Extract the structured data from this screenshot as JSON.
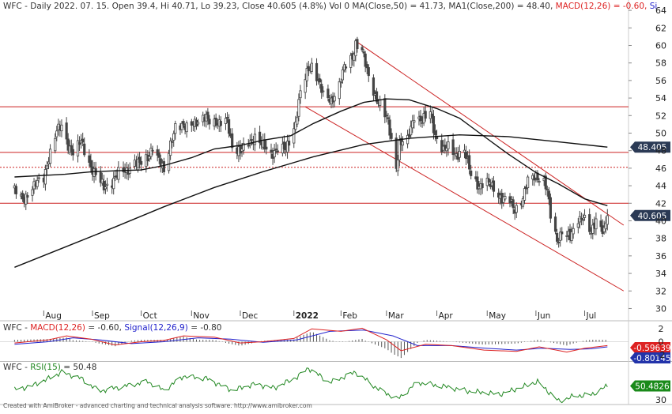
{
  "header": {
    "ticker": "WFC",
    "info": "- Daily 2022. 07. 15. Open 39.4, Hi 40.71, Lo 39.23, Close 40.605 (4.8%) Vol 0",
    "ma50": "MA(Close,50) = 41.73,",
    "ma200": "MA1(Close,200) = 48.40,",
    "macd": "MACD(12,26) = -0.60,",
    "signal": "Si"
  },
  "colors": {
    "candle": "#444444",
    "ma": "#111111",
    "trend": "#cc2222",
    "macd": "#dd2222",
    "signal": "#2222cc",
    "histogram": "#555555",
    "rsi": "#228822",
    "label_dark": "#2b3a55",
    "label_macd": "#dd2222",
    "label_signal": "#2233aa",
    "label_rsi": "#1a8a1a"
  },
  "chart_data": [
    {
      "type": "candlestick",
      "x_axis": {
        "ticks": [
          {
            "label": "Aug",
            "date": "2021-08-02"
          },
          {
            "label": "Sep",
            "date": "2021-09-01"
          },
          {
            "label": "Oct",
            "date": "2021-10-01"
          },
          {
            "label": "Nov",
            "date": "2021-11-01"
          },
          {
            "label": "Dec",
            "date": "2021-12-01"
          },
          {
            "label": "2022",
            "date": "2022-01-03"
          },
          {
            "label": "Feb",
            "date": "2022-02-01"
          },
          {
            "label": "Mar",
            "date": "2022-03-01"
          },
          {
            "label": "Apr",
            "date": "2022-04-01"
          },
          {
            "label": "May",
            "date": "2022-05-02"
          },
          {
            "label": "Jun",
            "date": "2022-06-01"
          },
          {
            "label": "Jul",
            "date": "2022-07-01"
          }
        ]
      },
      "y_axis": {
        "ticks": [
          30,
          32,
          34,
          36,
          38,
          40,
          42,
          44,
          46,
          48,
          50,
          52,
          54,
          56,
          58,
          60,
          62,
          64
        ],
        "ylim": [
          29.5,
          65
        ]
      },
      "close_series": [
        [
          "2021-07-15",
          43.5
        ],
        [
          "2021-07-20",
          42.3
        ],
        [
          "2021-07-26",
          43.9
        ],
        [
          "2021-08-02",
          44.8
        ],
        [
          "2021-08-05",
          47.3
        ],
        [
          "2021-08-10",
          50.2
        ],
        [
          "2021-08-13",
          50.7
        ],
        [
          "2021-08-17",
          48.7
        ],
        [
          "2021-08-20",
          47.8
        ],
        [
          "2021-08-25",
          49.0
        ],
        [
          "2021-08-31",
          46.2
        ],
        [
          "2021-09-03",
          45.2
        ],
        [
          "2021-09-08",
          43.8
        ],
        [
          "2021-09-13",
          44.5
        ],
        [
          "2021-09-17",
          45.4
        ],
        [
          "2021-09-22",
          45.7
        ],
        [
          "2021-09-27",
          46.8
        ],
        [
          "2021-09-30",
          46.4
        ],
        [
          "2021-10-05",
          47.2
        ],
        [
          "2021-10-08",
          48.6
        ],
        [
          "2021-10-13",
          46.4
        ],
        [
          "2021-10-15",
          45.6
        ],
        [
          "2021-10-19",
          48.9
        ],
        [
          "2021-10-22",
          50.7
        ],
        [
          "2021-10-27",
          50.6
        ],
        [
          "2021-11-02",
          51.4
        ],
        [
          "2021-11-05",
          51.0
        ],
        [
          "2021-11-10",
          51.8
        ],
        [
          "2021-11-15",
          51.4
        ],
        [
          "2021-11-18",
          50.9
        ],
        [
          "2021-11-23",
          51.5
        ],
        [
          "2021-11-26",
          48.6
        ],
        [
          "2021-12-01",
          47.8
        ],
        [
          "2021-12-06",
          48.9
        ],
        [
          "2021-12-10",
          49.6
        ],
        [
          "2021-12-15",
          48.5
        ],
        [
          "2021-12-20",
          47.6
        ],
        [
          "2021-12-23",
          48.2
        ],
        [
          "2021-12-29",
          48.1
        ],
        [
          "2022-01-04",
          51.2
        ],
        [
          "2022-01-07",
          54.6
        ],
        [
          "2022-01-12",
          57.3
        ],
        [
          "2022-01-14",
          57.8
        ],
        [
          "2022-01-18",
          56.2
        ],
        [
          "2022-01-21",
          54.2
        ],
        [
          "2022-01-26",
          53.7
        ],
        [
          "2022-01-31",
          55.6
        ],
        [
          "2022-02-03",
          57.4
        ],
        [
          "2022-02-08",
          58.7
        ],
        [
          "2022-02-10",
          60.3
        ],
        [
          "2022-02-14",
          59.4
        ],
        [
          "2022-02-17",
          57.0
        ],
        [
          "2022-02-22",
          54.3
        ],
        [
          "2022-02-25",
          53.3
        ],
        [
          "2022-03-02",
          51.2
        ],
        [
          "2022-03-07",
          46.2
        ],
        [
          "2022-03-09",
          48.8
        ],
        [
          "2022-03-14",
          49.1
        ],
        [
          "2022-03-18",
          52.1
        ],
        [
          "2022-03-23",
          51.4
        ],
        [
          "2022-03-28",
          52.3
        ],
        [
          "2022-03-31",
          49.8
        ],
        [
          "2022-04-05",
          48.0
        ],
        [
          "2022-04-08",
          48.4
        ],
        [
          "2022-04-13",
          47.6
        ],
        [
          "2022-04-18",
          47.9
        ],
        [
          "2022-04-22",
          45.3
        ],
        [
          "2022-04-27",
          44.0
        ],
        [
          "2022-05-02",
          44.3
        ],
        [
          "2022-05-06",
          43.8
        ],
        [
          "2022-05-11",
          42.5
        ],
        [
          "2022-05-16",
          42.2
        ],
        [
          "2022-05-19",
          41.3
        ],
        [
          "2022-05-24",
          42.6
        ],
        [
          "2022-05-27",
          44.5
        ],
        [
          "2022-06-01",
          45.2
        ],
        [
          "2022-06-06",
          44.5
        ],
        [
          "2022-06-08",
          43.3
        ],
        [
          "2022-06-10",
          40.6
        ],
        [
          "2022-06-14",
          37.8
        ],
        [
          "2022-06-17",
          38.8
        ],
        [
          "2022-06-22",
          38.0
        ],
        [
          "2022-06-27",
          40.3
        ],
        [
          "2022-06-30",
          40.5
        ],
        [
          "2022-07-05",
          38.4
        ],
        [
          "2022-07-08",
          40.2
        ],
        [
          "2022-07-13",
          38.9
        ],
        [
          "2022-07-15",
          40.605
        ]
      ],
      "ma50": [
        [
          "2021-07-15",
          45.0
        ],
        [
          "2021-08-15",
          45.3
        ],
        [
          "2021-09-01",
          45.6
        ],
        [
          "2021-09-15",
          45.7
        ],
        [
          "2021-10-01",
          45.8
        ],
        [
          "2021-10-15",
          46.3
        ],
        [
          "2021-11-01",
          47.2
        ],
        [
          "2021-11-15",
          48.2
        ],
        [
          "2021-12-01",
          48.6
        ],
        [
          "2021-12-15",
          49.2
        ],
        [
          "2022-01-01",
          49.7
        ],
        [
          "2022-01-15",
          51.1
        ],
        [
          "2022-02-01",
          52.5
        ],
        [
          "2022-02-15",
          53.5
        ],
        [
          "2022-03-01",
          53.9
        ],
        [
          "2022-03-15",
          53.8
        ],
        [
          "2022-04-01",
          52.8
        ],
        [
          "2022-04-15",
          51.7
        ],
        [
          "2022-05-01",
          49.5
        ],
        [
          "2022-05-15",
          47.6
        ],
        [
          "2022-06-01",
          45.5
        ],
        [
          "2022-06-15",
          44.2
        ],
        [
          "2022-07-01",
          42.5
        ],
        [
          "2022-07-15",
          41.73
        ]
      ],
      "ma200": [
        [
          "2021-07-15",
          34.7
        ],
        [
          "2021-08-15",
          37.0
        ],
        [
          "2021-09-15",
          39.3
        ],
        [
          "2021-10-15",
          41.6
        ],
        [
          "2021-11-15",
          43.8
        ],
        [
          "2021-12-15",
          45.6
        ],
        [
          "2022-01-15",
          47.3
        ],
        [
          "2022-02-15",
          48.7
        ],
        [
          "2022-03-15",
          49.4
        ],
        [
          "2022-04-15",
          49.8
        ],
        [
          "2022-05-15",
          49.6
        ],
        [
          "2022-06-15",
          49.0
        ],
        [
          "2022-07-15",
          48.4
        ]
      ],
      "horizontal_levels": [
        {
          "value": 53.0,
          "style": "solid"
        },
        {
          "value": 47.8,
          "style": "solid"
        },
        {
          "value": 46.1,
          "style": "dotted"
        },
        {
          "value": 42.0,
          "style": "solid"
        }
      ],
      "trend_lines": [
        [
          [
            "2022-02-10",
            60.5
          ],
          [
            "2022-07-25",
            39.5
          ]
        ],
        [
          [
            "2022-01-10",
            53.0
          ],
          [
            "2022-07-25",
            32.0
          ]
        ]
      ],
      "price_labels": {
        "ma200": "48.405",
        "close": "40.605"
      }
    },
    {
      "type": "line",
      "title": "WFC - MACD(12,26) = -0.60, Signal(12,26,9) = -0.80",
      "ticker": "WFC",
      "macd_name": "MACD(12,26)",
      "macd_value": "= -0.60,",
      "signal_name": "Signal(12,26,9)",
      "signal_value": "= -0.80",
      "y_axis": {
        "ticks": [
          2,
          0,
          -2
        ],
        "ylim": [
          -3,
          3
        ]
      },
      "label_macd": "-0.59639",
      "label_signal": "-0.80145",
      "macd": [
        [
          "2021-07-15",
          -0.2
        ],
        [
          "2021-08-05",
          0.3
        ],
        [
          "2021-08-16",
          0.9
        ],
        [
          "2021-08-31",
          0.4
        ],
        [
          "2021-09-15",
          -0.5
        ],
        [
          "2021-10-01",
          0.0
        ],
        [
          "2021-10-15",
          0.2
        ],
        [
          "2021-10-27",
          0.9
        ],
        [
          "2021-11-15",
          0.7
        ],
        [
          "2021-12-01",
          -0.2
        ],
        [
          "2021-12-15",
          0.0
        ],
        [
          "2022-01-03",
          0.5
        ],
        [
          "2022-01-14",
          2.0
        ],
        [
          "2022-02-01",
          1.6
        ],
        [
          "2022-02-14",
          2.1
        ],
        [
          "2022-03-01",
          0.3
        ],
        [
          "2022-03-10",
          -1.4
        ],
        [
          "2022-03-25",
          -0.4
        ],
        [
          "2022-04-10",
          -0.6
        ],
        [
          "2022-04-30",
          -1.3
        ],
        [
          "2022-05-20",
          -1.5
        ],
        [
          "2022-06-03",
          -0.8
        ],
        [
          "2022-06-20",
          -1.6
        ],
        [
          "2022-07-01",
          -1.0
        ],
        [
          "2022-07-15",
          -0.6
        ]
      ],
      "signal": [
        [
          "2021-07-15",
          -0.4
        ],
        [
          "2021-08-05",
          0.0
        ],
        [
          "2021-08-20",
          0.6
        ],
        [
          "2021-09-05",
          0.3
        ],
        [
          "2021-09-25",
          -0.3
        ],
        [
          "2021-10-15",
          0.0
        ],
        [
          "2021-11-05",
          0.6
        ],
        [
          "2021-11-25",
          0.4
        ],
        [
          "2021-12-15",
          -0.1
        ],
        [
          "2022-01-05",
          0.3
        ],
        [
          "2022-01-25",
          1.6
        ],
        [
          "2022-02-15",
          1.8
        ],
        [
          "2022-03-05",
          0.9
        ],
        [
          "2022-03-20",
          -0.6
        ],
        [
          "2022-04-10",
          -0.6
        ],
        [
          "2022-05-01",
          -1.0
        ],
        [
          "2022-05-20",
          -1.3
        ],
        [
          "2022-06-05",
          -1.0
        ],
        [
          "2022-06-22",
          -1.2
        ],
        [
          "2022-07-05",
          -1.1
        ],
        [
          "2022-07-15",
          -0.8
        ]
      ]
    },
    {
      "type": "line",
      "title": "WFC - RSI(15) = 50.48",
      "ticker": "WFC",
      "rsi_name": "RSI(15)",
      "rsi_value": "= 50.48",
      "y_axis": {
        "ticks": [
          30
        ],
        "ylim": [
          28,
          80
        ]
      },
      "label": "50.4826",
      "values": [
        [
          "2021-07-15",
          46
        ],
        [
          "2021-07-25",
          50
        ],
        [
          "2021-08-05",
          60
        ],
        [
          "2021-08-13",
          68
        ],
        [
          "2021-08-25",
          60
        ],
        [
          "2021-09-05",
          44
        ],
        [
          "2021-09-20",
          50
        ],
        [
          "2021-10-05",
          56
        ],
        [
          "2021-10-15",
          45
        ],
        [
          "2021-10-27",
          63
        ],
        [
          "2021-11-10",
          60
        ],
        [
          "2021-11-26",
          45
        ],
        [
          "2021-12-10",
          53
        ],
        [
          "2021-12-22",
          48
        ],
        [
          "2022-01-05",
          62
        ],
        [
          "2022-01-12",
          73
        ],
        [
          "2022-01-25",
          55
        ],
        [
          "2022-02-10",
          68
        ],
        [
          "2022-02-25",
          45
        ],
        [
          "2022-03-08",
          34
        ],
        [
          "2022-03-20",
          55
        ],
        [
          "2022-04-05",
          50
        ],
        [
          "2022-04-20",
          44
        ],
        [
          "2022-05-10",
          40
        ],
        [
          "2022-05-25",
          50
        ],
        [
          "2022-06-02",
          56
        ],
        [
          "2022-06-15",
          31
        ],
        [
          "2022-06-25",
          38
        ],
        [
          "2022-07-05",
          39
        ],
        [
          "2022-07-15",
          50.48
        ]
      ]
    }
  ],
  "footer": "Created with AmiBroker - advanced charting and technical analysis software. http://www.amibroker.com"
}
